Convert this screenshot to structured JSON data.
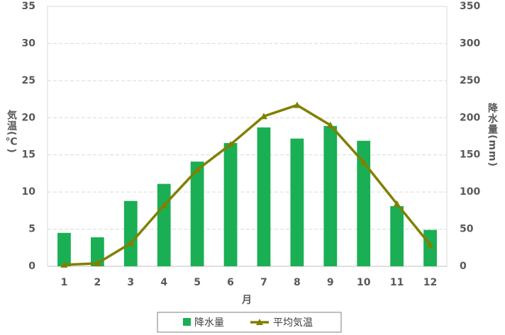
{
  "chart_data": {
    "type": "bar",
    "categories": [
      "1",
      "2",
      "3",
      "4",
      "5",
      "6",
      "7",
      "8",
      "9",
      "10",
      "11",
      "12"
    ],
    "x_label": "月",
    "y_label": "気温(℃)",
    "y2_label": "降水量(mm)",
    "ylim": [
      0,
      35
    ],
    "yticks": [
      0,
      5,
      10,
      15,
      20,
      25,
      30,
      35
    ],
    "y2lim": [
      0,
      350
    ],
    "y2ticks": [
      0,
      50,
      100,
      150,
      200,
      250,
      300,
      350
    ],
    "grid": true,
    "legend": "bottom",
    "series": [
      {
        "name": "降水量",
        "type": "bar",
        "axis": "y2",
        "color": "#1aaf54",
        "values": [
          45,
          39,
          88,
          111,
          141,
          166,
          187,
          172,
          189,
          169,
          81,
          49
        ]
      },
      {
        "name": "平均気温",
        "type": "line",
        "axis": "y",
        "color": "#808000",
        "values": [
          0.2,
          0.4,
          3.1,
          8.2,
          13.0,
          16.4,
          20.2,
          21.7,
          19.0,
          14.0,
          8.4,
          2.9
        ]
      }
    ]
  }
}
